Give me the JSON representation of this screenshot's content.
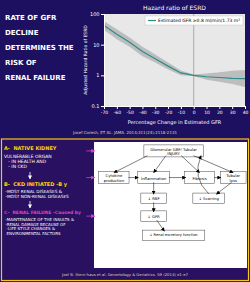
{
  "chart_data": {
    "type": "line",
    "title": "Hazard ratio of ESRD",
    "x_label": "Percentage Change in Estimated GFR",
    "y_label": "Adjusted Hazard Ratio of ESRD",
    "x": [
      -70,
      -60,
      -50,
      -40,
      -30,
      -20,
      -10,
      0,
      10,
      20,
      30,
      40
    ],
    "series": [
      {
        "name": "Estimated GFR ≥0.8 ml/min/1.73 m²",
        "color": "#2e8b8b",
        "values": [
          42,
          22,
          12,
          6,
          3.5,
          2.0,
          1.2,
          1.0,
          0.9,
          0.85,
          0.8,
          0.78
        ],
        "band": {
          "color": "#999999",
          "upper": [
            58,
            32,
            17,
            8.5,
            4.8,
            2.6,
            1.45,
            1.06,
            1.15,
            1.25,
            1.4,
            1.5
          ],
          "lower": [
            30,
            15,
            8.5,
            4.2,
            2.6,
            1.55,
            1.0,
            0.94,
            0.72,
            0.62,
            0.52,
            0.42
          ]
        }
      }
    ],
    "xlim": [
      -70,
      40
    ],
    "xticks": [
      -70,
      -60,
      -50,
      -40,
      -30,
      -20,
      -10,
      0,
      10,
      20,
      30,
      40
    ],
    "ylim": [
      0.1,
      100
    ],
    "yticks": [
      0.1,
      1,
      10,
      100
    ],
    "log": "y",
    "grid": false,
    "legend": "upper right",
    "vlines": [
      0
    ]
  },
  "annotations": [
    {
      "text": "RATE OF GFR",
      "color": "#ffffff"
    },
    {
      "text": "DECLINE",
      "color": "#ffffff"
    },
    {
      "text": "DETERMINES THE",
      "color": "#ffffff"
    },
    {
      "text": "RISK OF",
      "color": "#ffffff"
    },
    {
      "text": "RENAL FAILURE",
      "color": "#ffffff"
    },
    {
      "text": "Josef Coresh, ET AL. JAMA. 2014;311(24):2118-2131",
      "color": "#ddddaa"
    },
    {
      "text": "A-  NATIVE KIDNEY",
      "color": "#ffd700"
    },
    {
      "text": "VULNERABLE ORGAN\n   - IN HEALTH AND\n   - IN CKD",
      "color": "#ffffff"
    },
    {
      "text": "B-  CKD INITIATED -B y",
      "color": "#ffd700"
    },
    {
      "text": " -MOST RENAL DISEASES &\n -MOST NON-RENAL DISEASES",
      "color": "#ffffff"
    },
    {
      "text": "C-  RENAL FAILURE -Caused by",
      "color": "#dd44bb"
    },
    {
      "text": " -MAINTENANCE OF THE INSULTS &\n -RENAL DAMAGE BECAUSE OF\n  -LIFE STYLE CHANGES &\n  ENVIRONMENTAL FACTORS",
      "color": "#ffffff"
    },
    {
      "text": "Glomerular GBF/ Tubular\nINJURY"
    },
    {
      "text": "Cytokine\nproduction"
    },
    {
      "text": "Inflammation"
    },
    {
      "text": "Fibrosis"
    },
    {
      "text": "Tubular\nloss"
    },
    {
      "text": "↓ RBF"
    },
    {
      "text": "↓ Scarring"
    },
    {
      "text": "↓ GFR"
    },
    {
      "text": "↓ Renal excretory function"
    },
    {
      "text": "Joel B. Stern haus et al. Gerontology & Geriatrics. 59 (2014) e1-e7",
      "color": "#ddddaa"
    }
  ]
}
